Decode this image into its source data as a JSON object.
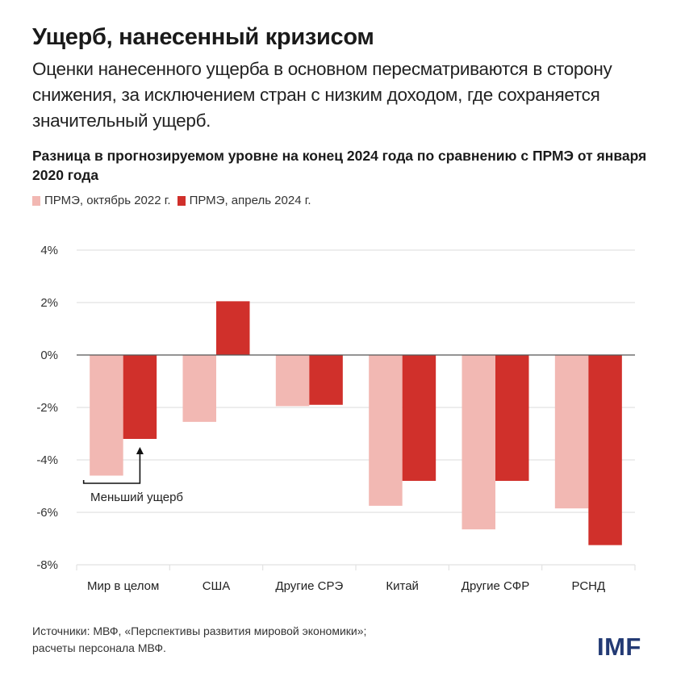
{
  "header": {
    "title": "Ущерб, нанесенный кризисом",
    "subtitle": "Оценки нанесенного ущерба в основном пересматриваются в сторону снижения, за исключением стран с низким доходом, где сохраняется значительный ущерб."
  },
  "footer": {
    "source_line1": "Источники: МВФ, «Перспективы развития мировой экономики»;",
    "source_line2": "расчеты персонала МВФ.",
    "logo": "IMF"
  },
  "colors": {
    "series1": "#f2b8b3",
    "series2": "#d0302b",
    "grid": "#e2e2e2",
    "zero": "#555555",
    "logo": "#233a74"
  },
  "chart_data": {
    "type": "bar",
    "title": "Разница в прогнозируемом уровне на конец 2024 года по сравнению с ПРМЭ от января 2020 года",
    "xlabel": "",
    "ylabel": "",
    "ylim": [
      -8,
      4
    ],
    "yticks": [
      4,
      2,
      0,
      -2,
      -4,
      -6,
      -8
    ],
    "ytick_labels": [
      "4%",
      "2%",
      "0%",
      "-2%",
      "-4%",
      "-6%",
      "-8%"
    ],
    "grid": true,
    "legend_position": "top-left",
    "categories": [
      "Мир в целом",
      "США",
      "Другие СРЭ",
      "Китай",
      "Другие СФР",
      "РСНД"
    ],
    "series": [
      {
        "name": "ПРМЭ, октябрь 2022 г.",
        "values": [
          -4.6,
          -2.55,
          -1.95,
          -5.75,
          -6.65,
          -5.85
        ]
      },
      {
        "name": "ПРМЭ, апрель 2024 г.",
        "values": [
          -3.2,
          2.05,
          -1.9,
          -4.8,
          -4.8,
          -7.25
        ]
      }
    ],
    "annotations": [
      {
        "text": "Меньший ущерб",
        "category": "Мир в целом",
        "points_to_series": 1
      }
    ]
  }
}
